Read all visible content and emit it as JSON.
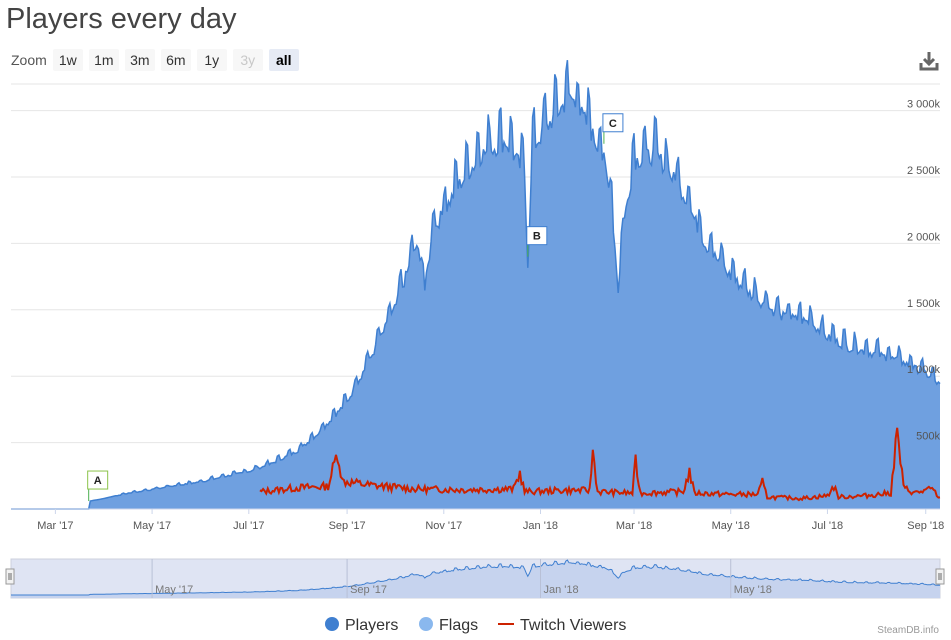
{
  "title": "Players every day",
  "zoom": {
    "label": "Zoom",
    "buttons": [
      {
        "label": "1w",
        "state": "normal"
      },
      {
        "label": "1m",
        "state": "normal"
      },
      {
        "label": "3m",
        "state": "normal"
      },
      {
        "label": "6m",
        "state": "normal"
      },
      {
        "label": "1y",
        "state": "normal"
      },
      {
        "label": "3y",
        "state": "disabled"
      },
      {
        "label": "all",
        "state": "active"
      }
    ]
  },
  "credit": "SteamDB.info",
  "colors": {
    "players_fill": "#6fa0e0",
    "players_line": "#3f7fd0",
    "flags": "#8ab8ee",
    "twitch": "#cc2200",
    "grid": "#e6e6e6"
  },
  "chart_data": {
    "type": "area",
    "title": "Players every day",
    "x_tick_labels": [
      "Mar '17",
      "May '17",
      "Jul '17",
      "Sep '17",
      "Nov '17",
      "Jan '18",
      "Mar '18",
      "May '18",
      "Jul '18",
      "Sep '18"
    ],
    "x_range": [
      "2017-02-01",
      "2018-09-10"
    ],
    "y_tick_labels": [
      "500k",
      "1 000k",
      "1 500k",
      "2 000k",
      "2 500k",
      "3 000k"
    ],
    "y_range": [
      0,
      3200000
    ],
    "grid": true,
    "legend_position": "bottom",
    "series": [
      {
        "name": "Players",
        "type": "area",
        "points": [
          [
            "2017-02-01",
            0
          ],
          [
            "2017-03-22",
            0
          ],
          [
            "2017-03-23",
            60000
          ],
          [
            "2017-04-01",
            80000
          ],
          [
            "2017-04-15",
            120000
          ],
          [
            "2017-05-01",
            150000
          ],
          [
            "2017-05-15",
            180000
          ],
          [
            "2017-06-01",
            210000
          ],
          [
            "2017-06-15",
            250000
          ],
          [
            "2017-07-01",
            290000
          ],
          [
            "2017-07-15",
            350000
          ],
          [
            "2017-08-01",
            450000
          ],
          [
            "2017-08-15",
            600000
          ],
          [
            "2017-09-01",
            830000
          ],
          [
            "2017-09-15",
            1150000
          ],
          [
            "2017-10-01",
            1550000
          ],
          [
            "2017-10-15",
            2050000
          ],
          [
            "2017-10-20",
            1700000
          ],
          [
            "2017-10-25",
            2150000
          ],
          [
            "2017-11-10",
            2500000
          ],
          [
            "2017-11-25",
            2750000
          ],
          [
            "2017-12-10",
            2850000
          ],
          [
            "2017-12-22",
            2600000
          ],
          [
            "2017-12-24",
            1900000
          ],
          [
            "2017-12-27",
            2800000
          ],
          [
            "2018-01-10",
            3050000
          ],
          [
            "2018-01-20",
            3200000
          ],
          [
            "2018-02-01",
            2950000
          ],
          [
            "2018-02-10",
            2700000
          ],
          [
            "2018-02-15",
            2350000
          ],
          [
            "2018-02-19",
            1700000
          ],
          [
            "2018-02-23",
            2250000
          ],
          [
            "2018-03-01",
            2700000
          ],
          [
            "2018-03-15",
            2750000
          ],
          [
            "2018-04-01",
            2450000
          ],
          [
            "2018-04-15",
            2050000
          ],
          [
            "2018-05-01",
            1800000
          ],
          [
            "2018-05-15",
            1650000
          ],
          [
            "2018-06-01",
            1500000
          ],
          [
            "2018-06-20",
            1450000
          ],
          [
            "2018-07-01",
            1330000
          ],
          [
            "2018-07-15",
            1250000
          ],
          [
            "2018-08-01",
            1200000
          ],
          [
            "2018-08-15",
            1150000
          ],
          [
            "2018-09-01",
            1050000
          ],
          [
            "2018-09-10",
            960000
          ]
        ]
      },
      {
        "name": "Twitch Viewers",
        "type": "line",
        "points": [
          [
            "2017-07-08",
            130000
          ],
          [
            "2017-08-01",
            160000
          ],
          [
            "2017-08-20",
            170000
          ],
          [
            "2017-08-26",
            430000
          ],
          [
            "2017-08-29",
            210000
          ],
          [
            "2017-09-15",
            180000
          ],
          [
            "2017-10-15",
            150000
          ],
          [
            "2017-11-15",
            145000
          ],
          [
            "2017-12-15",
            150000
          ],
          [
            "2017-12-19",
            270000
          ],
          [
            "2017-12-22",
            130000
          ],
          [
            "2018-01-15",
            140000
          ],
          [
            "2018-02-01",
            140000
          ],
          [
            "2018-02-03",
            440000
          ],
          [
            "2018-02-06",
            130000
          ],
          [
            "2018-02-28",
            120000
          ],
          [
            "2018-03-02",
            350000
          ],
          [
            "2018-03-05",
            120000
          ],
          [
            "2018-04-01",
            130000
          ],
          [
            "2018-04-05",
            280000
          ],
          [
            "2018-04-08",
            120000
          ],
          [
            "2018-05-01",
            110000
          ],
          [
            "2018-05-18",
            110000
          ],
          [
            "2018-05-21",
            200000
          ],
          [
            "2018-05-24",
            90000
          ],
          [
            "2018-06-15",
            80000
          ],
          [
            "2018-07-01",
            100000
          ],
          [
            "2018-07-05",
            170000
          ],
          [
            "2018-07-08",
            90000
          ],
          [
            "2018-07-25",
            100000
          ],
          [
            "2018-08-10",
            120000
          ],
          [
            "2018-08-14",
            580000
          ],
          [
            "2018-08-18",
            160000
          ],
          [
            "2018-08-25",
            120000
          ],
          [
            "2018-09-05",
            150000
          ],
          [
            "2018-09-10",
            80000
          ]
        ]
      },
      {
        "name": "Flags",
        "type": "flags",
        "points": []
      }
    ],
    "flags": [
      {
        "label": "A",
        "date": "2017-03-22",
        "value": 60000
      },
      {
        "label": "B",
        "date": "2017-12-24",
        "value": 1900000
      },
      {
        "label": "C",
        "date": "2018-02-10",
        "value": 2750000
      }
    ],
    "legend": [
      "Players",
      "Flags",
      "Twitch Viewers"
    ],
    "navigator": {
      "x_tick_labels": [
        "May '17",
        "Sep '17",
        "Jan '18",
        "May '18"
      ]
    }
  }
}
